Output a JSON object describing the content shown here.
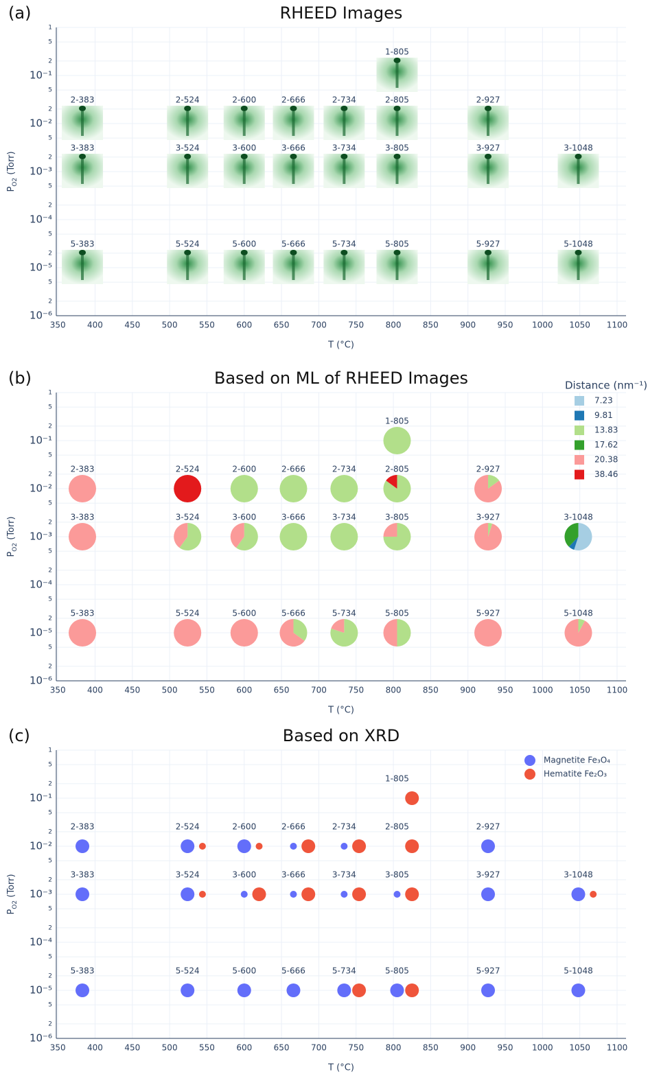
{
  "chart_data": [
    {
      "type": "image-scatter",
      "panel": "(a)",
      "title": "RHEED Images",
      "xlabel": "T (°C)",
      "ylabel": [
        "P",
        "O2",
        " (Torr)"
      ],
      "xlim": [
        348,
        1112
      ],
      "xticks": [
        350,
        400,
        450,
        500,
        550,
        600,
        650,
        700,
        750,
        800,
        850,
        900,
        950,
        1000,
        1050,
        1100
      ],
      "ylim": [
        1e-06,
        1
      ],
      "log_y": true,
      "grid": true,
      "yticks": [
        1,
        {
          "value": 0.5,
          "label": "5"
        },
        {
          "value": 0.2,
          "label": "2"
        },
        {
          "value": 0.1,
          "label": "10⁻¹"
        },
        {
          "value": 0.05,
          "label": "5"
        },
        {
          "value": 0.02,
          "label": "2"
        },
        {
          "value": 0.01,
          "label": "10⁻²"
        },
        {
          "value": 0.005,
          "label": "5"
        },
        {
          "value": 0.002,
          "label": "2"
        },
        {
          "value": 0.001,
          "label": "10⁻³"
        },
        {
          "value": 0.0005,
          "label": "5"
        },
        {
          "value": 0.0002,
          "label": "2"
        },
        {
          "value": 0.0001,
          "label": "10⁻⁴"
        },
        {
          "value": 5e-05,
          "label": "5"
        },
        {
          "value": 2e-05,
          "label": "2"
        },
        {
          "value": 1e-05,
          "label": "10⁻⁵"
        },
        {
          "value": 5e-06,
          "label": "5"
        },
        {
          "value": 2e-06,
          "label": "2"
        },
        {
          "value": 1e-06,
          "label": "10⁻⁶"
        }
      ],
      "samples": [
        {
          "label": "1-805",
          "x": 805,
          "y": 0.1
        },
        {
          "label": "2-383",
          "x": 383,
          "y": 0.01
        },
        {
          "label": "2-524",
          "x": 524,
          "y": 0.01
        },
        {
          "label": "2-600",
          "x": 600,
          "y": 0.01
        },
        {
          "label": "2-666",
          "x": 666,
          "y": 0.01
        },
        {
          "label": "2-734",
          "x": 734,
          "y": 0.01
        },
        {
          "label": "2-805",
          "x": 805,
          "y": 0.01
        },
        {
          "label": "2-927",
          "x": 927,
          "y": 0.01
        },
        {
          "label": "3-383",
          "x": 383,
          "y": 0.001
        },
        {
          "label": "3-524",
          "x": 524,
          "y": 0.001
        },
        {
          "label": "3-600",
          "x": 600,
          "y": 0.001
        },
        {
          "label": "3-666",
          "x": 666,
          "y": 0.001
        },
        {
          "label": "3-734",
          "x": 734,
          "y": 0.001
        },
        {
          "label": "3-805",
          "x": 805,
          "y": 0.001
        },
        {
          "label": "3-927",
          "x": 927,
          "y": 0.001
        },
        {
          "label": "3-1048",
          "x": 1048,
          "y": 0.001
        },
        {
          "label": "5-383",
          "x": 383,
          "y": 1e-05
        },
        {
          "label": "5-524",
          "x": 524,
          "y": 1e-05
        },
        {
          "label": "5-600",
          "x": 600,
          "y": 1e-05
        },
        {
          "label": "5-666",
          "x": 666,
          "y": 1e-05
        },
        {
          "label": "5-734",
          "x": 734,
          "y": 1e-05
        },
        {
          "label": "5-805",
          "x": 805,
          "y": 1e-05
        },
        {
          "label": "5-927",
          "x": 927,
          "y": 1e-05
        },
        {
          "label": "5-1048",
          "x": 1048,
          "y": 1e-05
        }
      ]
    },
    {
      "type": "pie-scatter",
      "panel": "(b)",
      "title": "Based on ML of RHEED Images",
      "xlabel": "T (°C)",
      "ylabel": [
        "P",
        "O2",
        " (Torr)"
      ],
      "xlim": [
        348,
        1112
      ],
      "xticks": [
        350,
        400,
        450,
        500,
        550,
        600,
        650,
        700,
        750,
        800,
        850,
        900,
        950,
        1000,
        1050,
        1100
      ],
      "ylim": [
        1e-06,
        1
      ],
      "log_y": true,
      "grid": true,
      "yticks": [
        1,
        {
          "value": 0.5,
          "label": "5"
        },
        {
          "value": 0.2,
          "label": "2"
        },
        {
          "value": 0.1,
          "label": "10⁻¹"
        },
        {
          "value": 0.05,
          "label": "5"
        },
        {
          "value": 0.02,
          "label": "2"
        },
        {
          "value": 0.01,
          "label": "10⁻²"
        },
        {
          "value": 0.005,
          "label": "5"
        },
        {
          "value": 0.002,
          "label": "2"
        },
        {
          "value": 0.001,
          "label": "10⁻³"
        },
        {
          "value": 0.0005,
          "label": "5"
        },
        {
          "value": 0.0002,
          "label": "2"
        },
        {
          "value": 0.0001,
          "label": "10⁻⁴"
        },
        {
          "value": 5e-05,
          "label": "5"
        },
        {
          "value": 2e-05,
          "label": "2"
        },
        {
          "value": 1e-05,
          "label": "10⁻⁵"
        },
        {
          "value": 5e-06,
          "label": "5"
        },
        {
          "value": 2e-06,
          "label": "2"
        },
        {
          "value": 1e-06,
          "label": "10⁻⁶"
        }
      ],
      "legend_title": "Distance (nm⁻¹)",
      "categories": [
        "7.23",
        "9.81",
        "13.83",
        "17.62",
        "20.38",
        "38.46"
      ],
      "colors": [
        "#a6cee3",
        "#1f78b4",
        "#b2df8a",
        "#33a02c",
        "#fb9a99",
        "#e31a1c"
      ],
      "samples": [
        {
          "label": "1-805",
          "x": 805,
          "y": 0.1,
          "values": [
            0,
            0,
            100,
            0,
            0,
            0
          ]
        },
        {
          "label": "2-383",
          "x": 383,
          "y": 0.01,
          "values": [
            0,
            0,
            0,
            0,
            100,
            0
          ]
        },
        {
          "label": "2-524",
          "x": 524,
          "y": 0.01,
          "values": [
            0,
            0,
            0,
            0,
            0,
            100
          ]
        },
        {
          "label": "2-600",
          "x": 600,
          "y": 0.01,
          "values": [
            0,
            0,
            100,
            0,
            0,
            0
          ]
        },
        {
          "label": "2-666",
          "x": 666,
          "y": 0.01,
          "values": [
            0,
            0,
            100,
            0,
            0,
            0
          ]
        },
        {
          "label": "2-734",
          "x": 734,
          "y": 0.01,
          "values": [
            0,
            0,
            100,
            0,
            0,
            0
          ]
        },
        {
          "label": "2-805",
          "x": 805,
          "y": 0.01,
          "values": [
            0,
            0,
            85,
            0,
            0,
            15
          ]
        },
        {
          "label": "2-927",
          "x": 927,
          "y": 0.01,
          "values": [
            0,
            0,
            15,
            0,
            85,
            0
          ]
        },
        {
          "label": "3-383",
          "x": 383,
          "y": 0.001,
          "values": [
            0,
            0,
            0,
            0,
            100,
            0
          ]
        },
        {
          "label": "3-524",
          "x": 524,
          "y": 0.001,
          "values": [
            0,
            0,
            60,
            0,
            40,
            0
          ]
        },
        {
          "label": "3-600",
          "x": 600,
          "y": 0.001,
          "values": [
            0,
            0,
            60,
            0,
            40,
            0
          ]
        },
        {
          "label": "3-666",
          "x": 666,
          "y": 0.001,
          "values": [
            0,
            0,
            100,
            0,
            0,
            0
          ]
        },
        {
          "label": "3-734",
          "x": 734,
          "y": 0.001,
          "values": [
            0,
            0,
            100,
            0,
            0,
            0
          ]
        },
        {
          "label": "3-805",
          "x": 805,
          "y": 0.001,
          "values": [
            0,
            0,
            75,
            0,
            25,
            0
          ]
        },
        {
          "label": "3-927",
          "x": 927,
          "y": 0.001,
          "values": [
            0,
            0,
            5,
            0,
            95,
            0
          ]
        },
        {
          "label": "3-1048",
          "x": 1048,
          "y": 0.001,
          "values": [
            55,
            7,
            0,
            38,
            0,
            0
          ]
        },
        {
          "label": "5-383",
          "x": 383,
          "y": 1e-05,
          "values": [
            0,
            0,
            0,
            0,
            100,
            0
          ]
        },
        {
          "label": "5-524",
          "x": 524,
          "y": 1e-05,
          "values": [
            0,
            0,
            0,
            0,
            100,
            0
          ]
        },
        {
          "label": "5-600",
          "x": 600,
          "y": 1e-05,
          "values": [
            0,
            0,
            0,
            0,
            100,
            0
          ]
        },
        {
          "label": "5-666",
          "x": 666,
          "y": 1e-05,
          "values": [
            0,
            0,
            35,
            0,
            65,
            0
          ]
        },
        {
          "label": "5-734",
          "x": 734,
          "y": 1e-05,
          "values": [
            0,
            0,
            80,
            0,
            20,
            0
          ]
        },
        {
          "label": "5-805",
          "x": 805,
          "y": 1e-05,
          "values": [
            0,
            0,
            50,
            0,
            50,
            0
          ]
        },
        {
          "label": "5-927",
          "x": 927,
          "y": 1e-05,
          "values": [
            0,
            0,
            0,
            0,
            100,
            0
          ]
        },
        {
          "label": "5-1048",
          "x": 1048,
          "y": 1e-05,
          "values": [
            0,
            0,
            8,
            0,
            92,
            0
          ]
        }
      ]
    },
    {
      "type": "scatter",
      "panel": "(c)",
      "title": "Based on XRD",
      "xlabel": "T (°C)",
      "ylabel": [
        "P",
        "O2",
        " (Torr)"
      ],
      "xlim": [
        348,
        1112
      ],
      "xticks": [
        350,
        400,
        450,
        500,
        550,
        600,
        650,
        700,
        750,
        800,
        850,
        900,
        950,
        1000,
        1050,
        1100
      ],
      "ylim": [
        1e-06,
        1
      ],
      "log_y": true,
      "grid": true,
      "yticks": [
        1,
        {
          "value": 0.5,
          "label": "5"
        },
        {
          "value": 0.2,
          "label": "2"
        },
        {
          "value": 0.1,
          "label": "10⁻¹"
        },
        {
          "value": 0.05,
          "label": "5"
        },
        {
          "value": 0.02,
          "label": "2"
        },
        {
          "value": 0.01,
          "label": "10⁻²"
        },
        {
          "value": 0.005,
          "label": "5"
        },
        {
          "value": 0.002,
          "label": "2"
        },
        {
          "value": 0.001,
          "label": "10⁻³"
        },
        {
          "value": 0.0005,
          "label": "5"
        },
        {
          "value": 0.0002,
          "label": "2"
        },
        {
          "value": 0.0001,
          "label": "10⁻⁴"
        },
        {
          "value": 5e-05,
          "label": "5"
        },
        {
          "value": 2e-05,
          "label": "2"
        },
        {
          "value": 1e-05,
          "label": "10⁻⁵"
        },
        {
          "value": 5e-06,
          "label": "5"
        },
        {
          "value": 2e-06,
          "label": "2"
        },
        {
          "value": 1e-06,
          "label": "10⁻⁶"
        }
      ],
      "samples": [
        {
          "label": "1-805",
          "x": 805,
          "y": 0.1
        },
        {
          "label": "2-383",
          "x": 383,
          "y": 0.01
        },
        {
          "label": "2-524",
          "x": 524,
          "y": 0.01
        },
        {
          "label": "2-600",
          "x": 600,
          "y": 0.01
        },
        {
          "label": "2-666",
          "x": 666,
          "y": 0.01
        },
        {
          "label": "2-734",
          "x": 734,
          "y": 0.01
        },
        {
          "label": "2-805",
          "x": 805,
          "y": 0.01
        },
        {
          "label": "2-927",
          "x": 927,
          "y": 0.01
        },
        {
          "label": "3-383",
          "x": 383,
          "y": 0.001
        },
        {
          "label": "3-524",
          "x": 524,
          "y": 0.001
        },
        {
          "label": "3-600",
          "x": 600,
          "y": 0.001
        },
        {
          "label": "3-666",
          "x": 666,
          "y": 0.001
        },
        {
          "label": "3-734",
          "x": 734,
          "y": 0.001
        },
        {
          "label": "3-805",
          "x": 805,
          "y": 0.001
        },
        {
          "label": "3-927",
          "x": 927,
          "y": 0.001
        },
        {
          "label": "3-1048",
          "x": 1048,
          "y": 0.001
        },
        {
          "label": "5-383",
          "x": 383,
          "y": 1e-05
        },
        {
          "label": "5-524",
          "x": 524,
          "y": 1e-05
        },
        {
          "label": "5-600",
          "x": 600,
          "y": 1e-05
        },
        {
          "label": "5-666",
          "x": 666,
          "y": 1e-05
        },
        {
          "label": "5-734",
          "x": 734,
          "y": 1e-05
        },
        {
          "label": "5-805",
          "x": 805,
          "y": 1e-05
        },
        {
          "label": "5-927",
          "x": 927,
          "y": 1e-05
        },
        {
          "label": "5-1048",
          "x": 1048,
          "y": 1e-05
        }
      ],
      "series": [
        {
          "name": "Magnetite Fe₃O₄",
          "color": "#636efa",
          "x": [
            383,
            524,
            600,
            666,
            734,
            927,
            383,
            524,
            600,
            666,
            734,
            805,
            927,
            1048,
            383,
            524,
            600,
            666,
            734,
            805,
            927,
            1048
          ],
          "y": [
            0.01,
            0.01,
            0.01,
            0.01,
            0.01,
            0.01,
            0.001,
            0.001,
            0.001,
            0.001,
            0.001,
            0.001,
            0.001,
            0.001,
            1e-05,
            1e-05,
            1e-05,
            1e-05,
            1e-05,
            1e-05,
            1e-05,
            1e-05
          ],
          "sizes": [
            1,
            1,
            1,
            0.5,
            0.5,
            1,
            1,
            1,
            0.5,
            0.5,
            0.5,
            0.5,
            1,
            1,
            1,
            1,
            1,
            1,
            1,
            1,
            1,
            1
          ]
        },
        {
          "name": "Hematite Fe₂O₃",
          "color": "#ef553b",
          "x": [
            825,
            544,
            620,
            686,
            754,
            825,
            544,
            620,
            686,
            754,
            825,
            1068,
            754,
            825
          ],
          "y": [
            0.1,
            0.01,
            0.01,
            0.01,
            0.01,
            0.01,
            0.001,
            0.001,
            0.001,
            0.001,
            0.001,
            0.001,
            1e-05,
            1e-05
          ],
          "sizes": [
            1,
            0.5,
            0.5,
            1,
            1,
            1,
            0.5,
            1,
            1,
            1,
            1,
            0.5,
            1,
            1
          ]
        }
      ]
    }
  ]
}
